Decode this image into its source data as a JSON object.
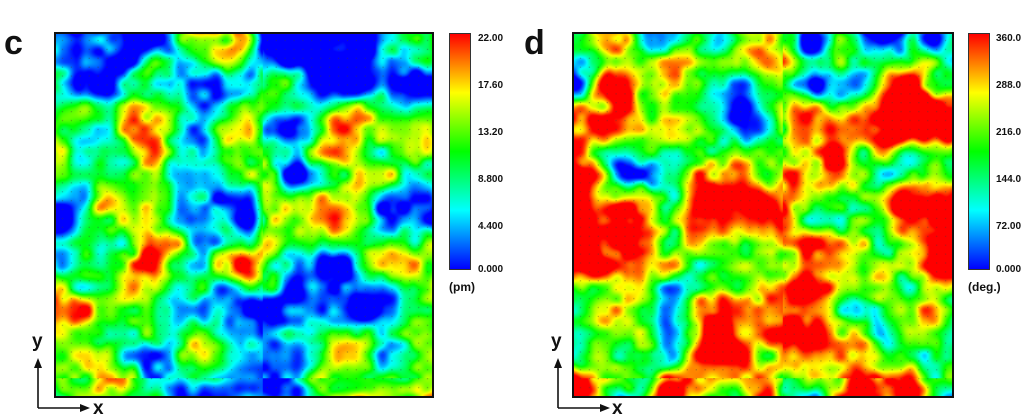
{
  "chart_data": [
    {
      "panel": "c",
      "type": "heatmap",
      "xlabel": "x",
      "ylabel": "y",
      "colorbar": {
        "ticks": [
          "22.00",
          "17.60",
          "13.20",
          "8.800",
          "4.400",
          "0.000"
        ],
        "range": [
          0,
          22
        ],
        "unit": "(pm)",
        "colormap": [
          "#0000ff",
          "#00ffff",
          "#00ff00",
          "#ffff00",
          "#ff0000"
        ]
      },
      "overall_level": "low-to-mid (mostly cyan/green, blue patches at top, scattered red spots)"
    },
    {
      "panel": "d",
      "type": "heatmap",
      "xlabel": "x",
      "ylabel": "y",
      "colorbar": {
        "ticks": [
          "360.0",
          "288.0",
          "216.0",
          "144.0",
          "72.00",
          "0.000"
        ],
        "range": [
          0,
          360
        ],
        "unit": "(deg.)",
        "colormap": [
          "#0000ff",
          "#00ffff",
          "#00ff00",
          "#ffff00",
          "#ff0000"
        ]
      },
      "overall_level": "high (mostly orange/red with green regions, blue domains at top-left and scattered blue spots)"
    }
  ],
  "colors": {
    "axis": "#111111",
    "dots": "#444444"
  }
}
